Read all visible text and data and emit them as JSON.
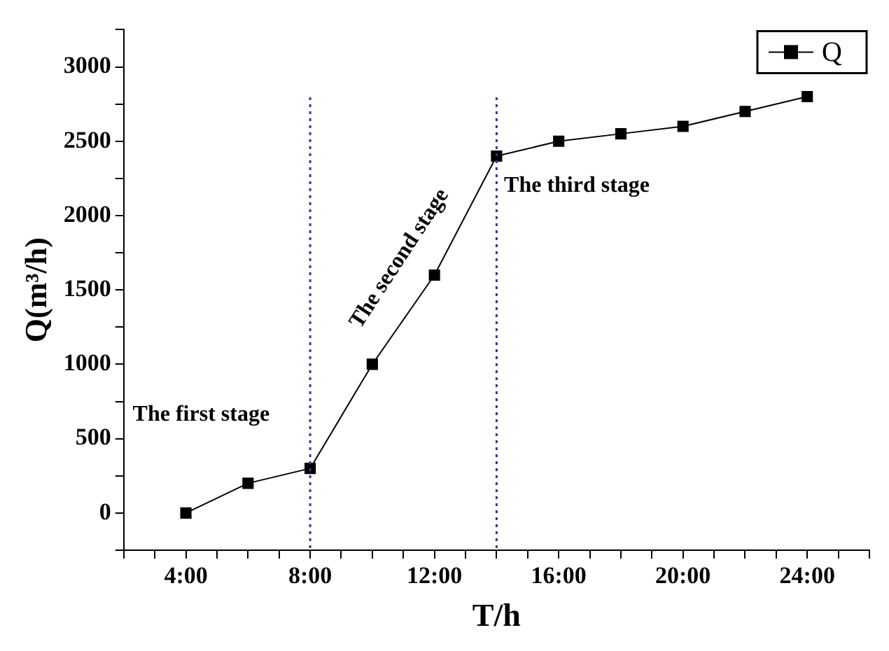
{
  "chart_data": {
    "type": "line",
    "xlabel": "T/h",
    "ylabel": "Q(m³/h)",
    "x": [
      4,
      6,
      8,
      10,
      12,
      14,
      16,
      18,
      20,
      22,
      24
    ],
    "series": [
      {
        "name": "Q",
        "color": "#000000",
        "values": [
          0,
          200,
          300,
          1000,
          1600,
          2400,
          2500,
          2550,
          2600,
          2700,
          2800
        ]
      }
    ],
    "xlim": [
      2,
      26
    ],
    "xticks": [
      {
        "value": 2,
        "label": null
      },
      {
        "value": 3,
        "label": null
      },
      {
        "value": 4,
        "label": "4:00"
      },
      {
        "value": 5,
        "label": null
      },
      {
        "value": 6,
        "label": null
      },
      {
        "value": 7,
        "label": null
      },
      {
        "value": 8,
        "label": "8:00"
      },
      {
        "value": 9,
        "label": null
      },
      {
        "value": 10,
        "label": null
      },
      {
        "value": 11,
        "label": null
      },
      {
        "value": 12,
        "label": "12:00"
      },
      {
        "value": 13,
        "label": null
      },
      {
        "value": 14,
        "label": null
      },
      {
        "value": 15,
        "label": null
      },
      {
        "value": 16,
        "label": "16:00"
      },
      {
        "value": 17,
        "label": null
      },
      {
        "value": 18,
        "label": null
      },
      {
        "value": 19,
        "label": null
      },
      {
        "value": 20,
        "label": "20:00"
      },
      {
        "value": 21,
        "label": null
      },
      {
        "value": 22,
        "label": null
      },
      {
        "value": 23,
        "label": null
      },
      {
        "value": 24,
        "label": "24:00"
      },
      {
        "value": 25,
        "label": null
      },
      {
        "value": 26,
        "label": null
      }
    ],
    "ylim": [
      -250,
      3250
    ],
    "yticks": [
      {
        "value": -250,
        "label": null
      },
      0,
      {
        "value": 250,
        "label": null
      },
      500,
      {
        "value": 750,
        "label": null
      },
      1000,
      {
        "value": 1250,
        "label": null
      },
      1500,
      {
        "value": 1750,
        "label": null
      },
      2000,
      {
        "value": 2250,
        "label": null
      },
      2500,
      {
        "value": 2750,
        "label": null
      },
      3000,
      {
        "value": 3250,
        "label": null
      }
    ],
    "ref_lines": [
      {
        "axis": "x",
        "value": 8,
        "color": "#3333aa",
        "line_style": "dotted"
      },
      {
        "axis": "x",
        "value": 14,
        "color": "#3333aa",
        "line_style": "dotted"
      }
    ],
    "annotations": [
      "The first stage",
      "The second stage",
      "The third stage"
    ],
    "grid": false,
    "legend": "top right",
    "marker": "square",
    "line_style": "solid"
  }
}
